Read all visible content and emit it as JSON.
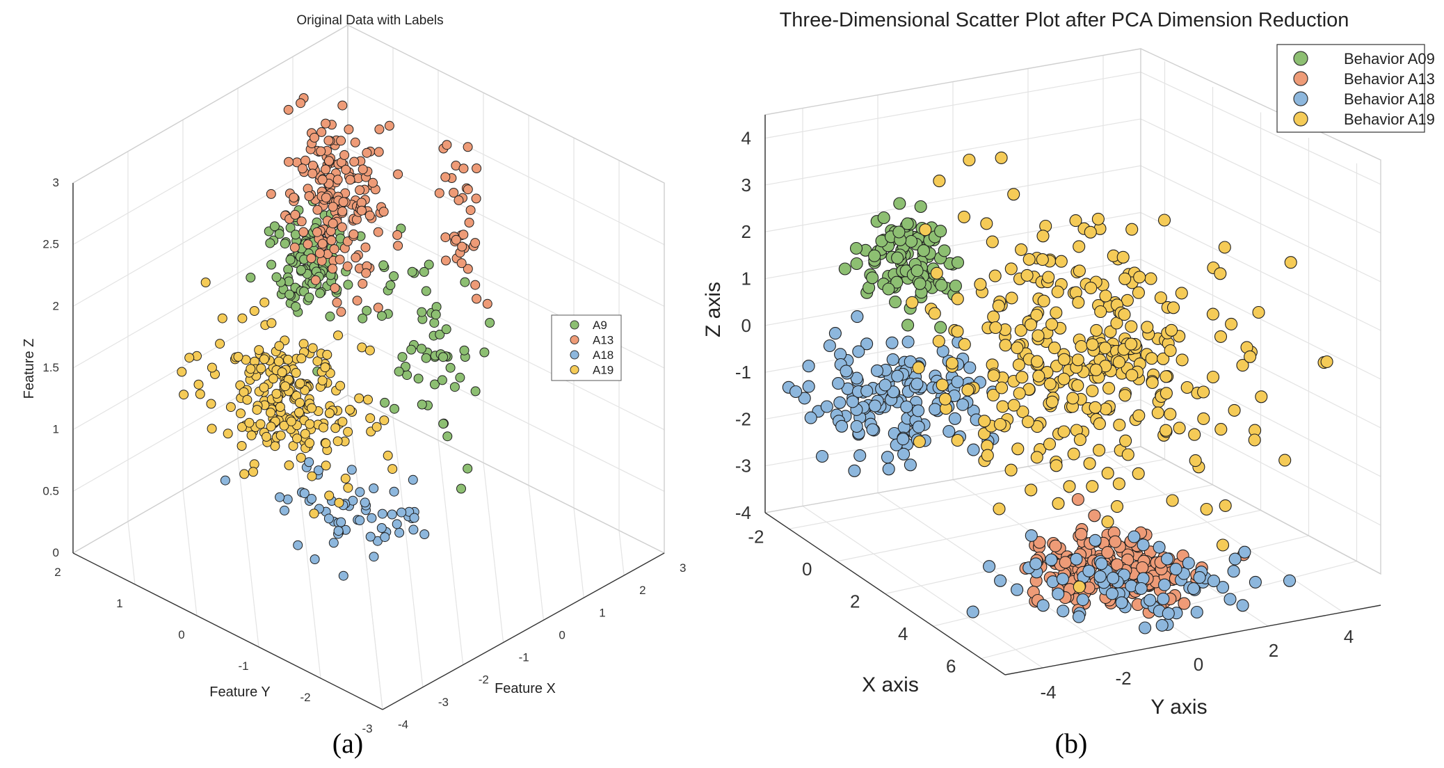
{
  "captions": {
    "left": "(a)",
    "right": "(b)"
  },
  "chart_data": [
    {
      "type": "scatter",
      "title": "Original Data with Labels",
      "xlabel": "Feature X",
      "ylabel": "Feature Y",
      "zlabel": "Feature Z",
      "xlim": [
        -4,
        3
      ],
      "ylim": [
        -3,
        2
      ],
      "zlim": [
        0,
        3
      ],
      "x_ticks": [
        "-4",
        "-3",
        "-2",
        "-1",
        "0",
        "1",
        "2",
        "3"
      ],
      "y_ticks": [
        "-3",
        "-2",
        "-1",
        "0",
        "1",
        "2"
      ],
      "z_ticks": [
        "0",
        "0.5",
        "1",
        "1.5",
        "2",
        "2.5",
        "3"
      ],
      "legend_position": "right",
      "series": [
        {
          "name": "A9",
          "color": "#8dbf72",
          "clusters": [
            {
              "x": 0.3,
              "y": 1.0,
              "z": 1.85,
              "sx": 0.35,
              "sy": 0.3,
              "sz": 0.22,
              "n": 110
            },
            {
              "x": 2.2,
              "y": 0.3,
              "z": 1.0,
              "sx": 0.15,
              "sy": 0.45,
              "sz": 0.35,
              "n": 60
            }
          ]
        },
        {
          "name": "A13",
          "color": "#ee9b77",
          "clusters": [
            {
              "x": 1.5,
              "y": 1.3,
              "z": 2.05,
              "sx": 0.3,
              "sy": 0.35,
              "sz": 0.3,
              "n": 180
            },
            {
              "x": 2.8,
              "y": 0.2,
              "z": 1.9,
              "sx": 0.1,
              "sy": 0.2,
              "sz": 0.3,
              "n": 35
            }
          ]
        },
        {
          "name": "A18",
          "color": "#8db7dd",
          "clusters": [
            {
              "x": -1.0,
              "y": -0.5,
              "z": 0.45,
              "sx": 0.5,
              "sy": 0.5,
              "sz": 0.1,
              "n": 60
            }
          ]
        },
        {
          "name": "A19",
          "color": "#f5cb57",
          "clusters": [
            {
              "x": -0.8,
              "y": 0.6,
              "z": 1.0,
              "sx": 0.55,
              "sy": 0.55,
              "sz": 0.25,
              "n": 220
            }
          ]
        }
      ]
    },
    {
      "type": "scatter",
      "title": "Three-Dimensional Scatter Plot after PCA Dimension Reduction",
      "xlabel": "X axis",
      "ylabel": "Y axis",
      "zlabel": "Z axis",
      "xlim": [
        -3,
        7
      ],
      "ylim": [
        -5,
        5
      ],
      "zlim": [
        -4,
        4.5
      ],
      "x_ticks": [
        "-2",
        "0",
        "2",
        "4",
        "6"
      ],
      "y_ticks": [
        "-4",
        "-2",
        "0",
        "2",
        "4"
      ],
      "z_ticks": [
        "-4",
        "-3",
        "-2",
        "-1",
        "0",
        "1",
        "2",
        "3",
        "4"
      ],
      "legend_position": "top-right",
      "series": [
        {
          "name": "Behavior A09",
          "color": "#8dbf72",
          "clusters": [
            {
              "x": -2.0,
              "y": -1.8,
              "z": 1.2,
              "sx": 0.6,
              "sy": 0.5,
              "sz": 0.45,
              "n": 110
            }
          ]
        },
        {
          "name": "Behavior A13",
          "color": "#ee9b77",
          "clusters": [
            {
              "x": 3.0,
              "y": 0.3,
              "z": -4.0,
              "sx": 0.9,
              "sy": 0.9,
              "sz": 0.3,
              "n": 190
            }
          ]
        },
        {
          "name": "Behavior A18",
          "color": "#8db7dd",
          "clusters": [
            {
              "x": -0.5,
              "y": -3.2,
              "z": -1.0,
              "sx": 1.0,
              "sy": 1.0,
              "sz": 0.5,
              "n": 150
            },
            {
              "x": 3.8,
              "y": 0.5,
              "z": -4.3,
              "sx": 1.2,
              "sy": 1.5,
              "sz": 0.25,
              "n": 80
            }
          ]
        },
        {
          "name": "Behavior A19",
          "color": "#f5cb57",
          "clusters": [
            {
              "x": 0.5,
              "y": 1.5,
              "z": -0.5,
              "sx": 1.8,
              "sy": 1.8,
              "sz": 1.4,
              "n": 330
            }
          ]
        }
      ]
    }
  ]
}
